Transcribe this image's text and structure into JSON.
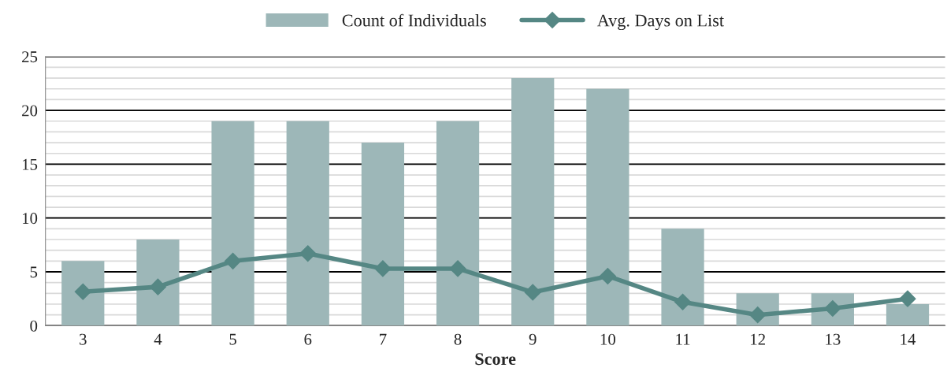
{
  "chart_data": {
    "type": "bar",
    "categories": [
      "3",
      "4",
      "5",
      "6",
      "7",
      "8",
      "9",
      "10",
      "11",
      "12",
      "13",
      "14"
    ],
    "series": [
      {
        "name": "Count of Individuals",
        "color": "#9db7b8",
        "values": [
          6,
          8,
          19,
          19,
          17,
          19,
          23,
          22,
          9,
          3,
          3,
          2
        ]
      },
      {
        "name": "Avg. Days on List",
        "type": "line",
        "color": "#558784",
        "marker": "diamond",
        "values": [
          3.15,
          3.6,
          6.0,
          6.7,
          5.3,
          5.3,
          3.1,
          4.6,
          2.2,
          1.0,
          1.6,
          2.5
        ]
      }
    ],
    "xlabel": "Score",
    "ylim": [
      0,
      25
    ],
    "yticks": [
      0,
      5,
      10,
      15,
      20,
      25
    ],
    "grid": "y",
    "legend": "top"
  }
}
